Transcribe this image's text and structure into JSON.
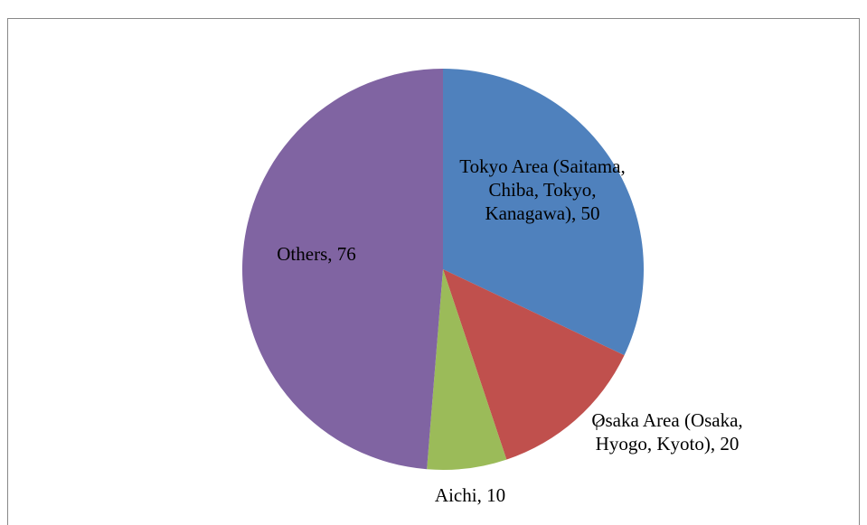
{
  "chart_data": {
    "type": "pie",
    "categories": [
      "Tokyo Area (Saitama, Chiba, Tokyo, Kanagawa)",
      "Osaka Area (Osaka, Hyogo, Kyoto)",
      "Aichi",
      "Others"
    ],
    "values": [
      50,
      20,
      10,
      76
    ],
    "value_labels": [
      "Tokyo Area (Saitama, Chiba, Tokyo, Kanagawa), 50",
      "Osaka Area (Osaka, Hyogo, Kyoto), 20",
      "Aichi, 10",
      "Others, 76"
    ],
    "colors": [
      "#4f81bd",
      "#c0504d",
      "#9bbb59",
      "#8064a2"
    ]
  }
}
